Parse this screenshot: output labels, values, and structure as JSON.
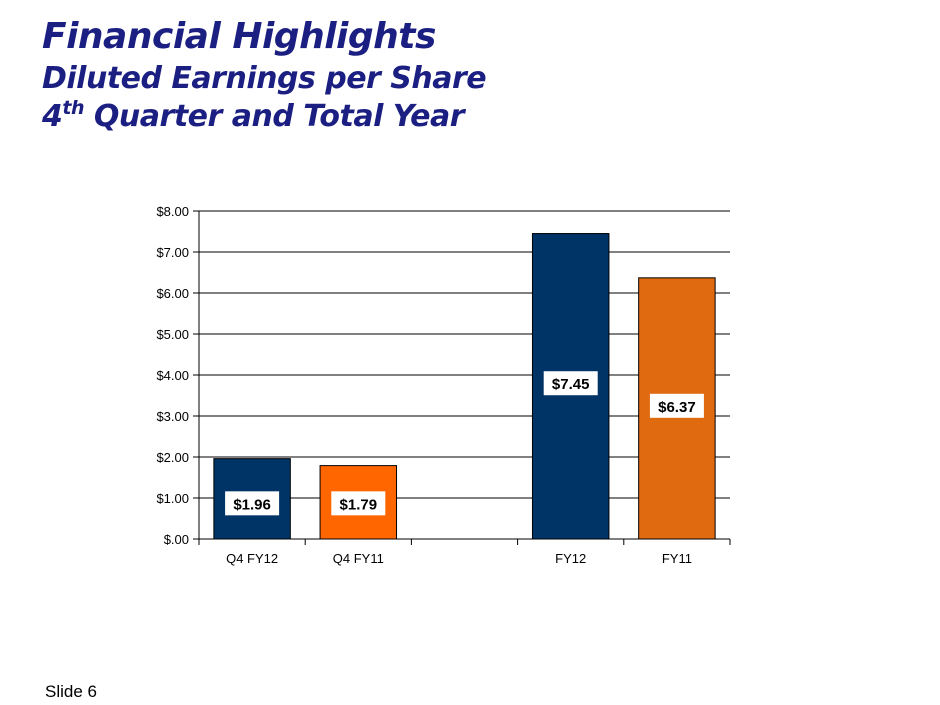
{
  "title": {
    "line1": "Financial Highlights",
    "line2": "Diluted Earnings per Share",
    "line3_prefix": "4",
    "line3_sup": "th",
    "line3_rest": " Quarter and Total Year"
  },
  "footer": {
    "slide_label": "Slide 6"
  },
  "colors": {
    "title": "#1b1f82",
    "navy": "#003366",
    "orange": "#e06a10",
    "orange_light": "#ff6600"
  },
  "chart_data": {
    "type": "bar",
    "categories": [
      "Q4 FY12",
      "Q4 FY11",
      "",
      "FY12",
      "FY11"
    ],
    "values": [
      1.96,
      1.79,
      null,
      7.45,
      6.37
    ],
    "data_labels": [
      "$1.96",
      "$1.79",
      "",
      "$7.45",
      "$6.37"
    ],
    "bar_colors": [
      "#003366",
      "#ff6600",
      "",
      "#003366",
      "#e06a10"
    ],
    "ylim": [
      0,
      8
    ],
    "yticks": [
      "$.00",
      "$1.00",
      "$2.00",
      "$3.00",
      "$4.00",
      "$5.00",
      "$6.00",
      "$7.00",
      "$8.00"
    ],
    "grid": true,
    "legend": "none",
    "title": "",
    "xlabel": "",
    "ylabel": ""
  }
}
